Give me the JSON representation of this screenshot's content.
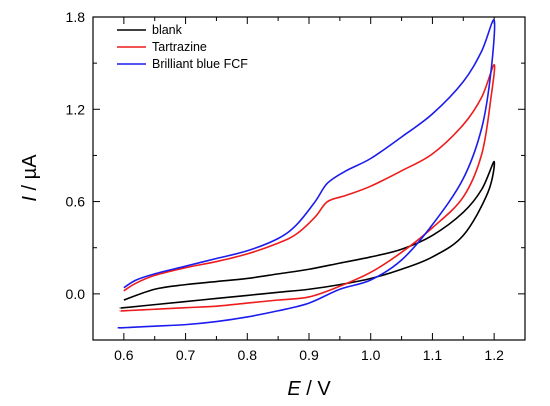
{
  "chart_data": {
    "type": "line",
    "x_var": "E",
    "x_unit": "V",
    "y_var": "I",
    "y_unit": "µA",
    "xlim": [
      0.55,
      1.25
    ],
    "ylim": [
      -0.3,
      1.8
    ],
    "xticks": [
      0.6,
      0.7,
      0.8,
      0.9,
      1.0,
      1.1,
      1.2
    ],
    "yticks": [
      0.0,
      0.6,
      1.2,
      1.8
    ],
    "xtick_labels": [
      "0.6",
      "0.7",
      "0.8",
      "0.9",
      "1.0",
      "1.1",
      "1.2"
    ],
    "ytick_labels": [
      "0.0",
      "0.6",
      "1.2",
      "1.8"
    ],
    "grid": false,
    "legend_position": "top-left",
    "series": [
      {
        "name": "blank",
        "color": "#000000",
        "x": [
          0.6,
          0.65,
          0.7,
          0.75,
          0.8,
          0.85,
          0.9,
          0.95,
          1.0,
          1.05,
          1.1,
          1.15,
          1.18,
          1.2,
          1.19,
          1.15,
          1.1,
          1.05,
          1.0,
          0.95,
          0.9,
          0.85,
          0.8,
          0.75,
          0.7,
          0.65,
          0.6,
          0.595
        ],
        "y": [
          -0.04,
          0.03,
          0.06,
          0.08,
          0.1,
          0.13,
          0.16,
          0.2,
          0.24,
          0.29,
          0.38,
          0.53,
          0.68,
          0.86,
          0.66,
          0.38,
          0.24,
          0.16,
          0.1,
          0.06,
          0.03,
          0.01,
          -0.01,
          -0.03,
          -0.05,
          -0.07,
          -0.09,
          -0.09
        ]
      },
      {
        "name": "Tartrazine",
        "color": "#ee1c1c",
        "x": [
          0.6,
          0.62,
          0.65,
          0.7,
          0.75,
          0.8,
          0.85,
          0.88,
          0.91,
          0.93,
          0.96,
          1.0,
          1.05,
          1.1,
          1.15,
          1.18,
          1.2,
          1.195,
          1.18,
          1.15,
          1.1,
          1.05,
          1.0,
          0.95,
          0.9,
          0.85,
          0.8,
          0.75,
          0.7,
          0.65,
          0.6,
          0.595
        ],
        "y": [
          0.02,
          0.07,
          0.12,
          0.17,
          0.21,
          0.26,
          0.33,
          0.39,
          0.5,
          0.6,
          0.64,
          0.7,
          0.8,
          0.91,
          1.1,
          1.28,
          1.49,
          1.28,
          0.91,
          0.63,
          0.43,
          0.27,
          0.14,
          0.05,
          -0.02,
          -0.04,
          -0.06,
          -0.08,
          -0.09,
          -0.1,
          -0.11,
          -0.11
        ]
      },
      {
        "name": "Brilliant blue FCF",
        "color": "#1c1cee",
        "x": [
          0.6,
          0.62,
          0.65,
          0.7,
          0.75,
          0.8,
          0.85,
          0.88,
          0.91,
          0.93,
          0.96,
          1.0,
          1.05,
          1.1,
          1.15,
          1.18,
          1.2,
          1.195,
          1.18,
          1.15,
          1.1,
          1.05,
          1.0,
          0.95,
          0.9,
          0.85,
          0.8,
          0.75,
          0.7,
          0.65,
          0.6,
          0.59
        ],
        "y": [
          0.04,
          0.09,
          0.13,
          0.18,
          0.23,
          0.28,
          0.36,
          0.45,
          0.6,
          0.72,
          0.8,
          0.88,
          1.02,
          1.17,
          1.38,
          1.58,
          1.78,
          1.45,
          1.08,
          0.75,
          0.45,
          0.22,
          0.09,
          0.03,
          -0.06,
          -0.11,
          -0.15,
          -0.18,
          -0.2,
          -0.21,
          -0.22,
          -0.22
        ]
      }
    ]
  }
}
